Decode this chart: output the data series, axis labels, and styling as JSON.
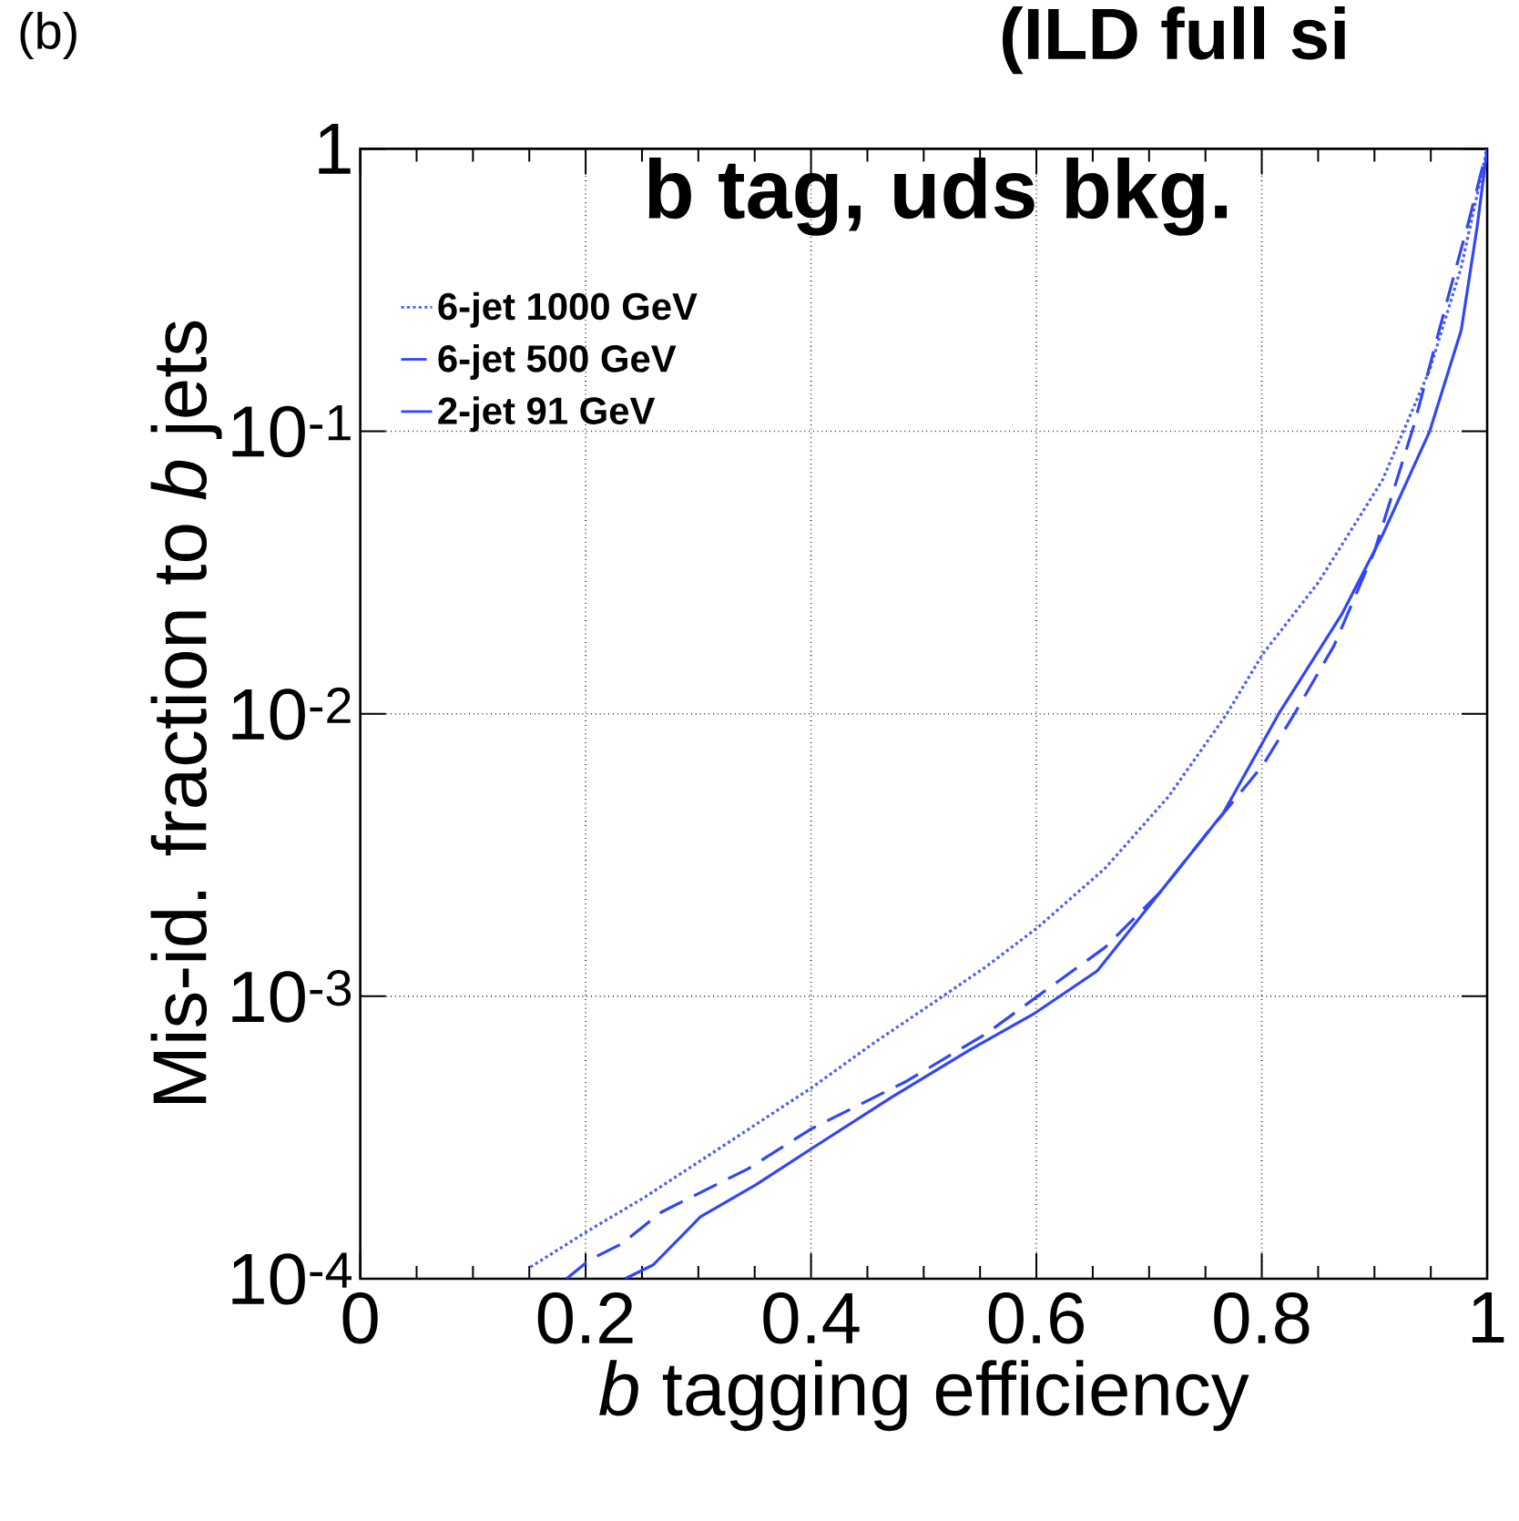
{
  "chart_data": {
    "type": "line",
    "title": "(ILD full si",
    "annotations": [
      "(b)",
      "b tag, uds bkg."
    ],
    "xlabel": "*b* tagging efficiency",
    "ylabel": "Mis-id. fraction to *b* jets",
    "xlim": [
      0,
      1
    ],
    "xticks": [
      0,
      0.2,
      0.4,
      0.6,
      0.8,
      1
    ],
    "ylim": [
      0.0001,
      1
    ],
    "yticks": [
      {
        "value": 0.0001,
        "label": "10$^{-4}$"
      },
      {
        "value": 0.001,
        "label": "10$^{-3}$"
      },
      {
        "value": 0.01,
        "label": "10$^{-2}$"
      },
      {
        "value": 0.1,
        "label": "10$^{-1}$"
      },
      {
        "value": 1,
        "label": "1"
      }
    ],
    "log": "y",
    "grid": true,
    "legend": "top left",
    "series": [
      {
        "name": "6-jet 1000 GeV",
        "color": "#4d5dff",
        "line_style": "dotted",
        "x": [
          0.151,
          0.2,
          0.253,
          0.323,
          0.4,
          0.457,
          0.517,
          0.555,
          0.601,
          0.661,
          0.717,
          0.769,
          0.801,
          0.85,
          0.907,
          0.949,
          0.977,
          1
        ],
        "values": [
          0.00011,
          0.000146,
          0.000195,
          0.000297,
          0.000473,
          0.000689,
          0.001,
          0.00127,
          0.00175,
          0.00284,
          0.00508,
          0.01,
          0.0163,
          0.0291,
          0.0671,
          0.165,
          0.381,
          1
        ]
      },
      {
        "name": "6-jet 500 GeV",
        "color": "#2f45ff",
        "line_style": "dashed",
        "x": [
          0.183,
          0.204,
          0.232,
          0.267,
          0.344,
          0.4,
          0.485,
          0.555,
          0.601,
          0.661,
          0.71,
          0.752,
          0.801,
          0.829,
          0.864,
          0.9,
          0.935,
          0.963,
          0.984,
          1
        ],
        "values": [
          0.0001,
          0.000117,
          0.000133,
          0.000172,
          0.000245,
          0.000339,
          0.000501,
          0.000735,
          0.001,
          0.00149,
          0.00234,
          0.0038,
          0.00658,
          0.01,
          0.0174,
          0.0376,
          0.105,
          0.276,
          0.561,
          1
        ]
      },
      {
        "name": "2-jet 91 GeV",
        "color": "#2f45ff",
        "line_style": "solid",
        "x": [
          0.235,
          0.26,
          0.302,
          0.351,
          0.4,
          0.471,
          0.541,
          0.597,
          0.654,
          0.71,
          0.766,
          0.815,
          0.871,
          0.907,
          0.949,
          0.977,
          0.991,
          1
        ],
        "values": [
          0.0001,
          0.000112,
          0.000166,
          0.000215,
          0.000288,
          0.000438,
          0.000646,
          0.000863,
          0.00123,
          0.00234,
          0.00447,
          0.01,
          0.0225,
          0.0428,
          0.1,
          0.228,
          0.526,
          1
        ]
      }
    ]
  }
}
